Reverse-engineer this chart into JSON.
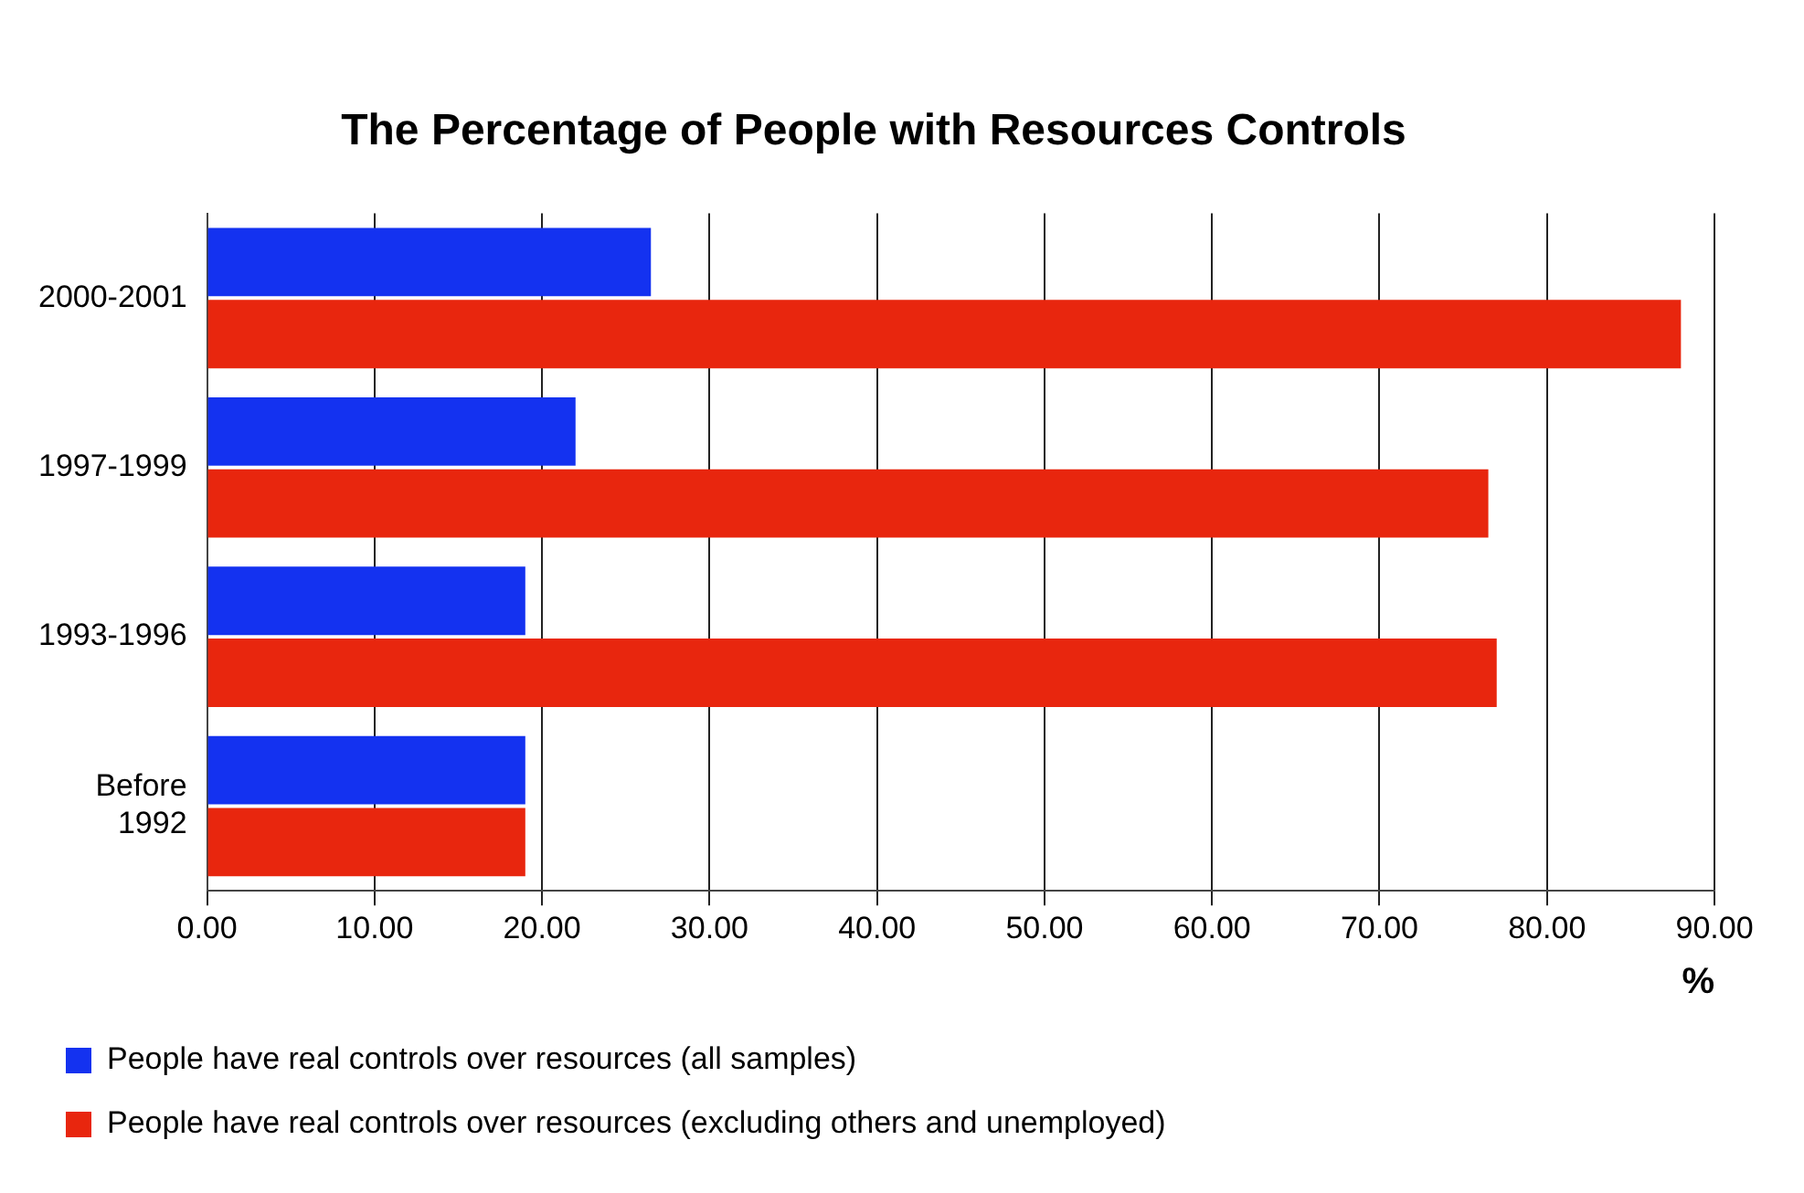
{
  "chart_data": {
    "type": "bar",
    "orientation": "horizontal",
    "title": "The Percentage of People with Resources Controls",
    "xlabel": "%",
    "categories": [
      "2000-2001",
      "1997-1999",
      "1993-1996",
      "Before 1992"
    ],
    "series": [
      {
        "name": "People have real controls over resources (all samples)",
        "color": "#1432f0",
        "values": [
          26.5,
          22,
          19,
          19
        ]
      },
      {
        "name": "People have real controls over resources (excluding others and unemployed)",
        "color": "#e8260e",
        "values": [
          88,
          76.5,
          77,
          19
        ]
      }
    ],
    "xlim": [
      0,
      90
    ],
    "xticks": [
      {
        "value": 0,
        "label": "0.00"
      },
      {
        "value": 10,
        "label": "10.00"
      },
      {
        "value": 20,
        "label": "20.00"
      },
      {
        "value": 30,
        "label": "30.00"
      },
      {
        "value": 40,
        "label": "40.00"
      },
      {
        "value": 50,
        "label": "50.00"
      },
      {
        "value": 60,
        "label": "60.00"
      },
      {
        "value": 70,
        "label": "70.00"
      },
      {
        "value": 80,
        "label": "80.00"
      },
      {
        "value": 90,
        "label": "90.00"
      }
    ],
    "grid": "x",
    "legend": "bottom"
  }
}
